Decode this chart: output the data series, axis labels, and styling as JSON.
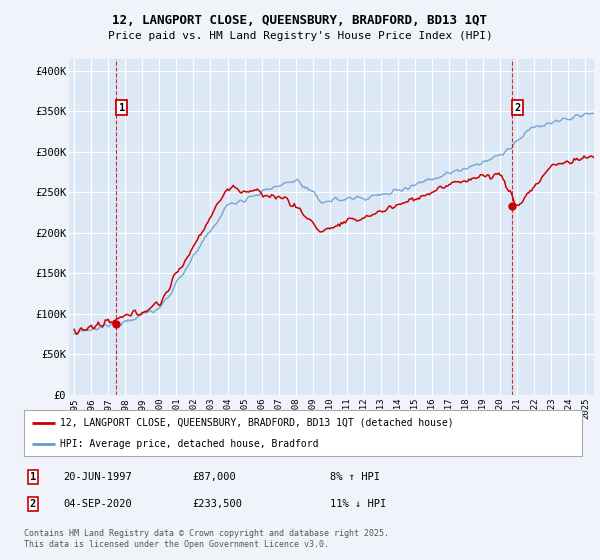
{
  "title_line1": "12, LANGPORT CLOSE, QUEENSBURY, BRADFORD, BD13 1QT",
  "title_line2": "Price paid vs. HM Land Registry's House Price Index (HPI)",
  "legend_line1": "12, LANGPORT CLOSE, QUEENSBURY, BRADFORD, BD13 1QT (detached house)",
  "legend_line2": "HPI: Average price, detached house, Bradford",
  "sale1_label": "1",
  "sale1_date": "20-JUN-1997",
  "sale1_price": "£87,000",
  "sale1_hpi": "8% ↑ HPI",
  "sale1_year": 1997.46,
  "sale1_value": 87000,
  "sale2_label": "2",
  "sale2_date": "04-SEP-2020",
  "sale2_price": "£233,500",
  "sale2_hpi": "11% ↓ HPI",
  "sale2_year": 2020.67,
  "sale2_value": 233500,
  "ylabel_ticks": [
    "£0",
    "£50K",
    "£100K",
    "£150K",
    "£200K",
    "£250K",
    "£300K",
    "£350K",
    "£400K"
  ],
  "ytick_values": [
    0,
    50000,
    100000,
    150000,
    200000,
    250000,
    300000,
    350000,
    400000
  ],
  "ylim": [
    0,
    415000
  ],
  "xlim_start": 1994.7,
  "xlim_end": 2025.5,
  "background_color": "#f0f4fa",
  "plot_bg_color": "#dce8f5",
  "red_color": "#cc0000",
  "blue_color": "#6699cc",
  "grid_color": "#ffffff",
  "footnote": "Contains HM Land Registry data © Crown copyright and database right 2025.\nThis data is licensed under the Open Government Licence v3.0."
}
